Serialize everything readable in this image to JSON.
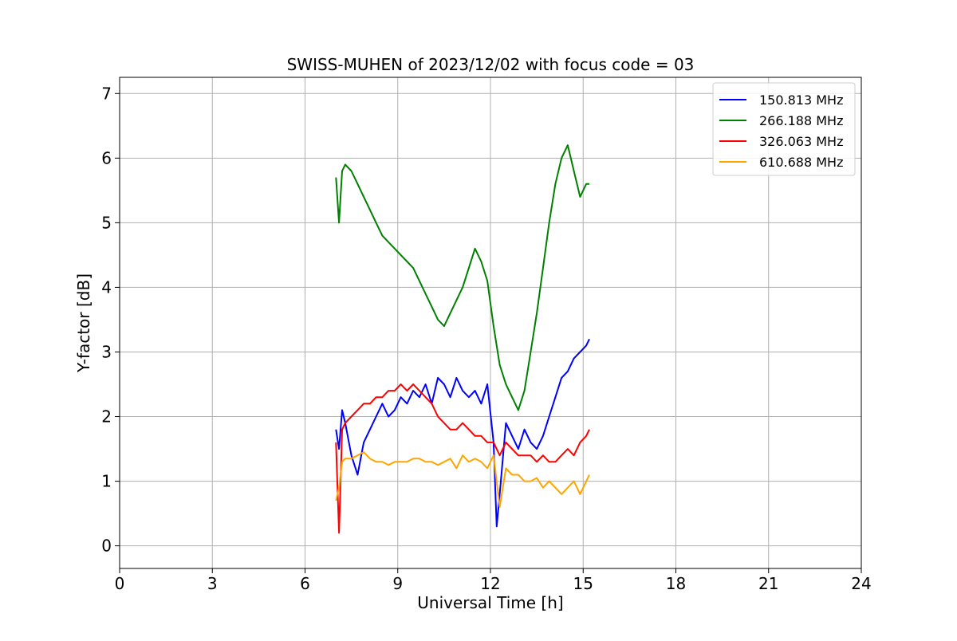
{
  "chart_data": {
    "type": "line",
    "title": "SWISS-MUHEN of 2023/12/02 with focus code = 03",
    "xlabel": "Universal Time [h]",
    "ylabel": "Y-factor [dB]",
    "xlim": [
      0,
      24
    ],
    "ylim": [
      -0.35,
      7.25
    ],
    "xticks": [
      0,
      3,
      6,
      9,
      12,
      15,
      18,
      21,
      24
    ],
    "yticks": [
      0,
      1,
      2,
      3,
      4,
      5,
      6,
      7
    ],
    "grid": true,
    "legend_position": "top-right",
    "series": [
      {
        "name": "150.813 MHz",
        "color": "#0000ff",
        "x": [
          7.0,
          7.1,
          7.2,
          7.3,
          7.5,
          7.7,
          7.9,
          8.1,
          8.3,
          8.5,
          8.7,
          8.9,
          9.1,
          9.3,
          9.5,
          9.7,
          9.9,
          10.1,
          10.3,
          10.5,
          10.7,
          10.9,
          11.1,
          11.3,
          11.5,
          11.7,
          11.9,
          12.1,
          12.2,
          12.3,
          12.5,
          12.7,
          12.9,
          13.1,
          13.3,
          13.5,
          13.7,
          13.9,
          14.1,
          14.3,
          14.5,
          14.7,
          14.9,
          15.1,
          15.2
        ],
        "values": [
          1.8,
          1.5,
          2.1,
          1.9,
          1.4,
          1.1,
          1.6,
          1.8,
          2.0,
          2.2,
          2.0,
          2.1,
          2.3,
          2.2,
          2.4,
          2.3,
          2.5,
          2.2,
          2.6,
          2.5,
          2.3,
          2.6,
          2.4,
          2.3,
          2.4,
          2.2,
          2.5,
          1.6,
          0.3,
          0.8,
          1.9,
          1.7,
          1.5,
          1.8,
          1.6,
          1.5,
          1.7,
          2.0,
          2.3,
          2.6,
          2.7,
          2.9,
          3.0,
          3.1,
          3.2
        ]
      },
      {
        "name": "266.188 MHz",
        "color": "#008000",
        "x": [
          7.0,
          7.1,
          7.2,
          7.3,
          7.5,
          7.7,
          7.9,
          8.1,
          8.3,
          8.5,
          8.7,
          8.9,
          9.1,
          9.3,
          9.5,
          9.7,
          9.9,
          10.1,
          10.3,
          10.5,
          10.7,
          10.9,
          11.1,
          11.3,
          11.5,
          11.7,
          11.9,
          12.1,
          12.3,
          12.5,
          12.7,
          12.9,
          13.1,
          13.3,
          13.5,
          13.7,
          13.9,
          14.1,
          14.3,
          14.5,
          14.7,
          14.9,
          15.1,
          15.2
        ],
        "values": [
          5.7,
          5.0,
          5.8,
          5.9,
          5.8,
          5.6,
          5.4,
          5.2,
          5.0,
          4.8,
          4.7,
          4.6,
          4.5,
          4.4,
          4.3,
          4.1,
          3.9,
          3.7,
          3.5,
          3.4,
          3.6,
          3.8,
          4.0,
          4.3,
          4.6,
          4.4,
          4.1,
          3.4,
          2.8,
          2.5,
          2.3,
          2.1,
          2.4,
          3.0,
          3.6,
          4.3,
          5.0,
          5.6,
          6.0,
          6.2,
          5.8,
          5.4,
          5.6,
          5.6
        ]
      },
      {
        "name": "326.063 MHz",
        "color": "#ff0000",
        "x": [
          7.0,
          7.1,
          7.2,
          7.3,
          7.5,
          7.7,
          7.9,
          8.1,
          8.3,
          8.5,
          8.7,
          8.9,
          9.1,
          9.3,
          9.5,
          9.7,
          9.9,
          10.1,
          10.3,
          10.5,
          10.7,
          10.9,
          11.1,
          11.3,
          11.5,
          11.7,
          11.9,
          12.1,
          12.3,
          12.5,
          12.7,
          12.9,
          13.1,
          13.3,
          13.5,
          13.7,
          13.9,
          14.1,
          14.3,
          14.5,
          14.7,
          14.9,
          15.1,
          15.2
        ],
        "values": [
          1.6,
          0.2,
          1.8,
          1.9,
          2.0,
          2.1,
          2.2,
          2.2,
          2.3,
          2.3,
          2.4,
          2.4,
          2.5,
          2.4,
          2.5,
          2.4,
          2.3,
          2.2,
          2.0,
          1.9,
          1.8,
          1.8,
          1.9,
          1.8,
          1.7,
          1.7,
          1.6,
          1.6,
          1.4,
          1.6,
          1.5,
          1.4,
          1.4,
          1.4,
          1.3,
          1.4,
          1.3,
          1.3,
          1.4,
          1.5,
          1.4,
          1.6,
          1.7,
          1.8
        ]
      },
      {
        "name": "610.688 MHz",
        "color": "#ffa500",
        "x": [
          7.0,
          7.1,
          7.2,
          7.3,
          7.5,
          7.7,
          7.9,
          8.1,
          8.3,
          8.5,
          8.7,
          8.9,
          9.1,
          9.3,
          9.5,
          9.7,
          9.9,
          10.1,
          10.3,
          10.5,
          10.7,
          10.9,
          11.1,
          11.3,
          11.5,
          11.7,
          11.9,
          12.1,
          12.3,
          12.5,
          12.7,
          12.9,
          13.1,
          13.3,
          13.5,
          13.7,
          13.9,
          14.1,
          14.3,
          14.5,
          14.7,
          14.9,
          15.1,
          15.2
        ],
        "values": [
          0.7,
          0.9,
          1.3,
          1.35,
          1.35,
          1.4,
          1.45,
          1.35,
          1.3,
          1.3,
          1.25,
          1.3,
          1.3,
          1.3,
          1.35,
          1.35,
          1.3,
          1.3,
          1.25,
          1.3,
          1.35,
          1.2,
          1.4,
          1.3,
          1.35,
          1.3,
          1.2,
          1.4,
          0.6,
          1.2,
          1.1,
          1.1,
          1.0,
          1.0,
          1.05,
          0.9,
          1.0,
          0.9,
          0.8,
          0.9,
          1.0,
          0.8,
          1.0,
          1.1
        ]
      }
    ]
  }
}
